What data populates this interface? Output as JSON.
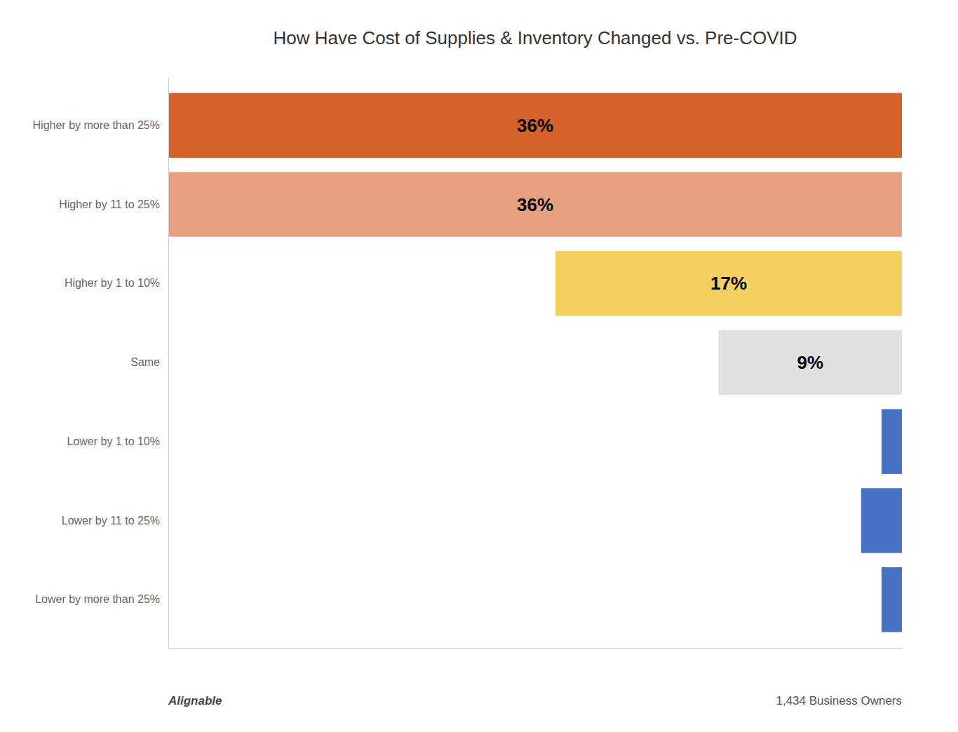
{
  "chart_data": {
    "type": "bar",
    "orientation": "horizontal",
    "title": "How Have Cost of Supplies & Inventory Changed vs. Pre-COVID",
    "categories": [
      "Higher by more than 25%",
      "Higher by 11 to 25%",
      "Higher by 1 to 10%",
      "Same",
      "Lower by 1 to 10%",
      "Lower by 11 to 25%",
      "Lower by more than 25%"
    ],
    "values": [
      36,
      36,
      17,
      9,
      1,
      2,
      1
    ],
    "value_labels": [
      "36%",
      "36%",
      "17%",
      "9%",
      null,
      null,
      null
    ],
    "colors": [
      "#D4622A",
      "#E8A080",
      "#F5D060",
      "#E0E0E0",
      "#4A72C4",
      "#4A72C4",
      "#4A72C4"
    ],
    "data_labels": true,
    "xlim": [
      0,
      36
    ],
    "tick_labels": "y",
    "grid": false,
    "annotations": [
      "Alignable",
      "1,434 Business Owners"
    ]
  }
}
